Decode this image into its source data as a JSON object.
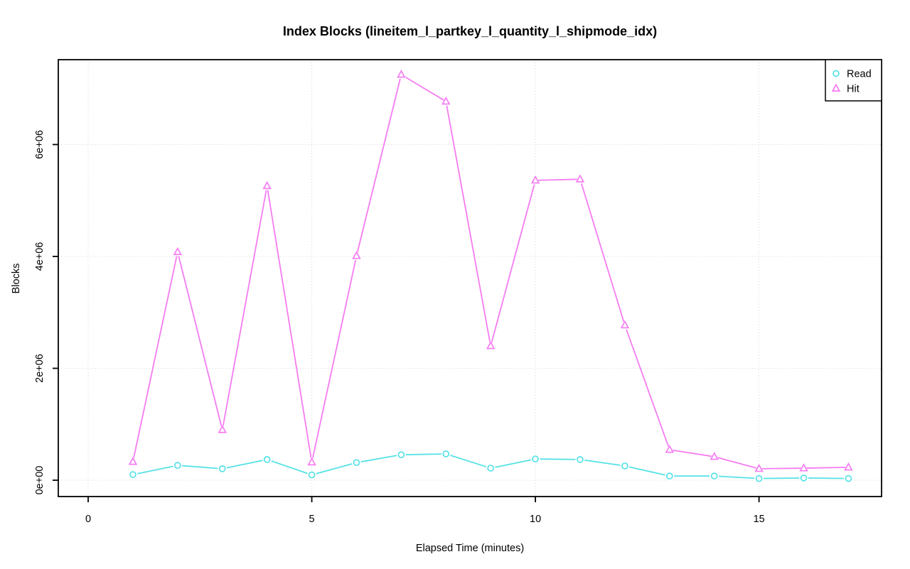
{
  "title": "Index Blocks (lineitem_l_partkey_l_quantity_l_shipmode_idx)",
  "axes": {
    "xlabel": "Elapsed Time (minutes)",
    "ylabel": "Blocks",
    "x_tick_labels": [
      "0",
      "5",
      "10",
      "15"
    ],
    "y_tick_labels": [
      "0e+00",
      "2e+06",
      "4e+06",
      "6e+06"
    ]
  },
  "legend": {
    "items": [
      {
        "label": "Read",
        "symbol": "circle-icon",
        "color": "#55E2E6"
      },
      {
        "label": "Hit",
        "symbol": "triangle-icon",
        "color": "#F57CF2"
      }
    ]
  },
  "colors": {
    "read_series": "#55E2E6",
    "hit_series": "#F57CF2",
    "gridline": "#D6D6D6",
    "axis": "#000000",
    "background": "#FFFFFF"
  },
  "chart_data": {
    "type": "line",
    "title": "Index Blocks (lineitem_l_partkey_l_quantity_l_shipmode_idx)",
    "xlabel": "Elapsed Time (minutes)",
    "ylabel": "Blocks",
    "x": [
      1,
      2,
      3,
      4,
      5,
      6,
      7,
      8,
      9,
      10,
      11,
      12,
      13,
      14,
      15,
      16,
      17
    ],
    "series": [
      {
        "name": "Read",
        "marker": "circle",
        "color": "#55E2E6",
        "values": [
          100000,
          265000,
          205000,
          370000,
          95000,
          315000,
          455000,
          470000,
          215000,
          380000,
          370000,
          255000,
          75000,
          75000,
          30000,
          40000,
          30000
        ]
      },
      {
        "name": "Hit",
        "marker": "triangle",
        "color": "#F57CF2",
        "values": [
          330000,
          4080000,
          900000,
          5260000,
          320000,
          4010000,
          7250000,
          6770000,
          2400000,
          5360000,
          5380000,
          2770000,
          545000,
          420000,
          205000,
          215000,
          230000
        ]
      }
    ],
    "x_ticks": [
      0,
      5,
      10,
      15
    ],
    "y_ticks": [
      0,
      2000000,
      4000000,
      6000000
    ],
    "y_tick_labels": [
      "0e+00",
      "2e+06",
      "4e+06",
      "6e+06"
    ],
    "xlim": [
      -0.668,
      17.74
    ],
    "ylim": [
      -292000,
      7517000
    ],
    "grid": true,
    "grid_style": "dotted",
    "legend_position": "topright"
  }
}
